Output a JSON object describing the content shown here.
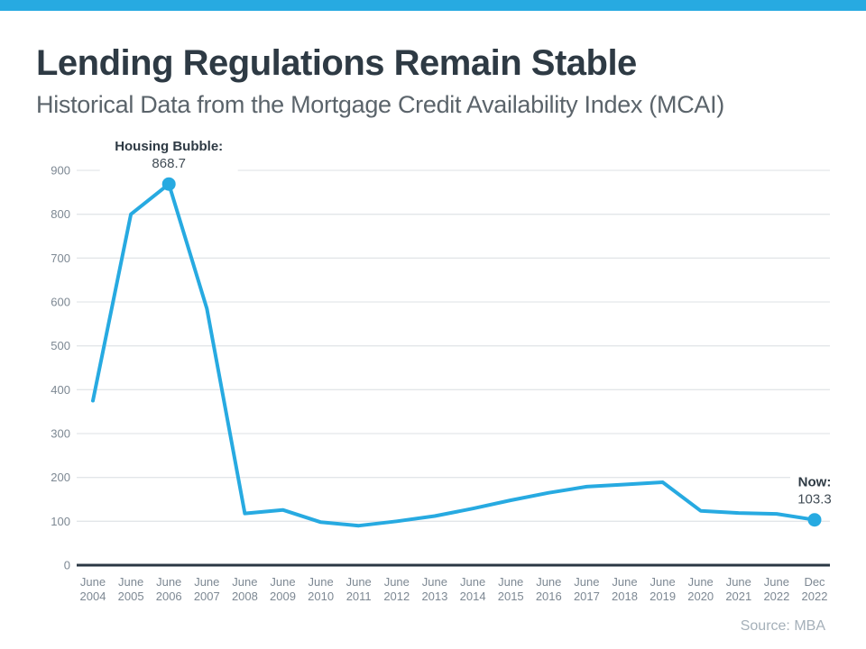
{
  "colors": {
    "accent": "#27aae1",
    "title": "#2e3a44",
    "subtitle": "#5b646b",
    "tick_label": "#7d8893",
    "gridline": "#e3e6e9",
    "axis_line": "#2b3844",
    "annotation_label": "#2e3a44",
    "annotation_value": "#414c55",
    "source": "#a5b0b9"
  },
  "header": {
    "title": "Lending Regulations Remain Stable",
    "subtitle": "Historical Data from the Mortgage Credit Availability Index (MCAI)"
  },
  "footer": {
    "source": "Source: MBA"
  },
  "chart_data": {
    "type": "line",
    "title": "Mortgage Credit Availability Index (MCAI)",
    "categories": [
      "June 2004",
      "June 2005",
      "June 2006",
      "June 2007",
      "June 2008",
      "June 2009",
      "June 2010",
      "June 2011",
      "June 2012",
      "June 2013",
      "June 2014",
      "June 2015",
      "June 2016",
      "June 2017",
      "June 2018",
      "June 2019",
      "June 2020",
      "June 2021",
      "June 2022",
      "Dec 2022"
    ],
    "values": [
      375,
      800,
      868.7,
      585,
      118,
      126,
      98,
      90,
      100,
      112,
      129,
      148,
      165,
      179,
      184,
      189,
      124,
      119,
      117,
      103.3
    ],
    "ylim": [
      0,
      900
    ],
    "yticks": [
      0,
      100,
      200,
      300,
      400,
      500,
      600,
      700,
      800,
      900
    ],
    "grid": true,
    "legend": "none",
    "marker_indices": [
      2,
      19
    ],
    "annotations": [
      {
        "label": "Housing Bubble:",
        "value": "868.7",
        "index": 2
      },
      {
        "label": "Now:",
        "value": "103.3",
        "index": 19
      }
    ]
  }
}
